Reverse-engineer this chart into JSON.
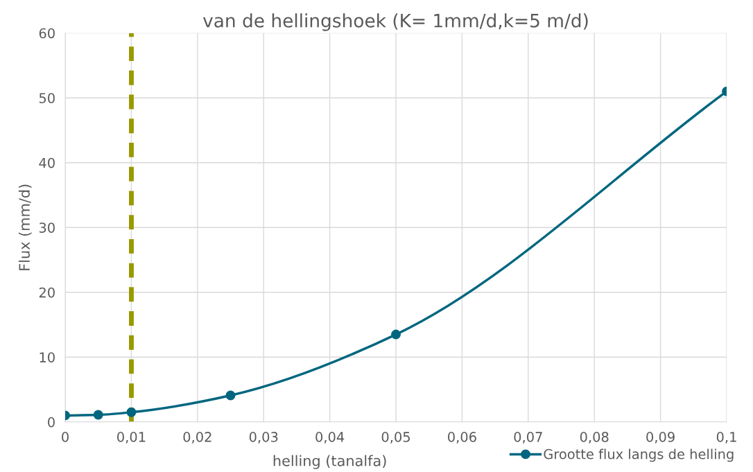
{
  "chart_data": {
    "type": "line",
    "title": "van de hellingshoek (K= 1mm/d,k=5 m/d)",
    "xlabel": "helling (tanalfa)",
    "ylabel": "Flux (mm/d)",
    "x": [
      0,
      0.005,
      0.01,
      0.025,
      0.05,
      0.1
    ],
    "series": [
      {
        "name": "Grootte flux langs de helling",
        "color": "#00667f",
        "values": [
          1.0,
          1.1,
          1.5,
          4.1,
          13.5,
          51
        ]
      }
    ],
    "xlim": [
      0,
      0.1
    ],
    "xticks": [
      {
        "value": 0,
        "label": "0"
      },
      {
        "value": 0.01,
        "label": "0,01"
      },
      {
        "value": 0.02,
        "label": "0,02"
      },
      {
        "value": 0.03,
        "label": "0,03"
      },
      {
        "value": 0.04,
        "label": "0,04"
      },
      {
        "value": 0.05,
        "label": "0,05"
      },
      {
        "value": 0.06,
        "label": "0,06"
      },
      {
        "value": 0.07,
        "label": "0,07"
      },
      {
        "value": 0.08,
        "label": "0,08"
      },
      {
        "value": 0.09,
        "label": "0,09"
      },
      {
        "value": 0.1,
        "label": "0,1"
      }
    ],
    "ylim": [
      0,
      60
    ],
    "yticks": [
      0,
      10,
      20,
      30,
      40,
      50,
      60
    ],
    "ref_lines": [
      {
        "axis": "x",
        "value": 0.01,
        "color": "#999900",
        "line_style": "dashed"
      }
    ],
    "grid": true,
    "legend": "bottom right",
    "marker": "circle",
    "line_style": "solid"
  }
}
